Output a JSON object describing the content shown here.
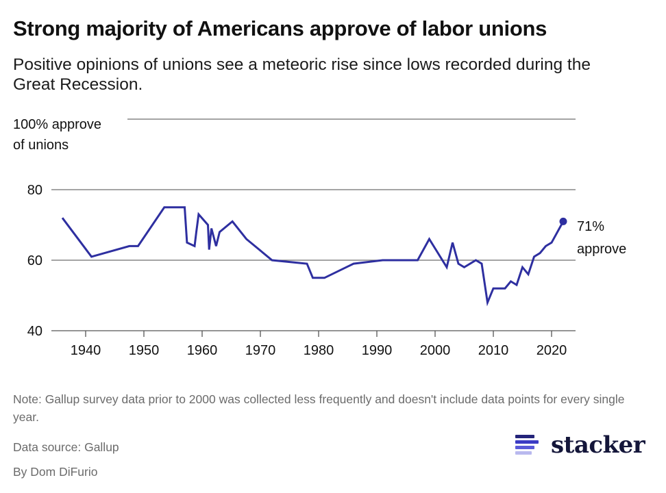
{
  "header": {
    "title": "Strong majority of Americans approve of labor unions",
    "subtitle": "Positive opinions of unions see a meteoric rise since lows recorded during the Great Recession."
  },
  "chart_data": {
    "type": "line",
    "title": "Strong majority of Americans approve of labor unions",
    "subtitle": "Positive opinions of unions see a meteoric rise since lows recorded during the Great Recession.",
    "xlabel": "",
    "ylabel": "% approve of unions",
    "y_top_label": [
      "100% approve",
      "of unions"
    ],
    "xlim": [
      1934,
      2025
    ],
    "ylim": [
      40,
      100
    ],
    "yticks": [
      40,
      60,
      80,
      100
    ],
    "ytick_labels": [
      "40",
      "60",
      "80",
      ""
    ],
    "xticks": [
      1940,
      1950,
      1960,
      1970,
      1980,
      1990,
      2000,
      2010,
      2020
    ],
    "xtick_labels": [
      "1940",
      "1950",
      "1960",
      "1970",
      "1980",
      "1990",
      "2000",
      "2010",
      "2020"
    ],
    "grid": true,
    "line_color": "#2e2fa0",
    "series": [
      {
        "name": "Approve of labor unions",
        "x": [
          1936,
          1941,
          1947.5,
          1949,
          1953.5,
          1957,
          1957.4,
          1958.7,
          1959,
          1959.4,
          1961,
          1961.2,
          1961.6,
          1962.4,
          1963,
          1965.2,
          1967.6,
          1972,
          1978,
          1979,
          1981,
          1986,
          1991,
          1997,
          1999,
          2002,
          2003,
          2004,
          2005,
          2007,
          2008,
          2009,
          2010,
          2012,
          2013,
          2014,
          2015,
          2016,
          2017,
          2018,
          2019,
          2020,
          2022
        ],
        "values": [
          72,
          61,
          64,
          64,
          75,
          75,
          65,
          64,
          68,
          73,
          70,
          63,
          69,
          64,
          68,
          71,
          66,
          60,
          59,
          55,
          55,
          59,
          60,
          60,
          66,
          58,
          65,
          59,
          58,
          60,
          59,
          48,
          52,
          52,
          54,
          53,
          58,
          56,
          61,
          62,
          64,
          65,
          71
        ]
      }
    ],
    "annotations": [
      {
        "x": 2022,
        "y": 71,
        "text_lines": [
          "71%",
          "approve"
        ],
        "marker": "dot"
      }
    ]
  },
  "footer": {
    "note": "Note: Gallup survey data prior to 2000 was collected less frequently and doesn't include data points for every single year.",
    "source": "Data source: Gallup",
    "byline": "By Dom DiFurio",
    "logo_text": "stacker",
    "logo_bar_colors": [
      "#24247a",
      "#3b3bc4",
      "#5a5ad8",
      "#b9b9ef"
    ]
  }
}
